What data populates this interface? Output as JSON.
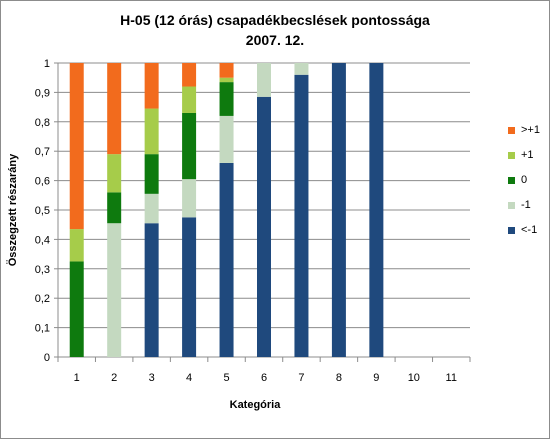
{
  "chart_data": {
    "type": "bar",
    "stacked": true,
    "title": "H-05 (12 órás) csapadékbecslések pontossága",
    "subtitle": "2007. 12.",
    "xlabel": "Kategória",
    "ylabel": "Összegzett részarány",
    "ylim": [
      0,
      1
    ],
    "yticks": [
      "0",
      "0,1",
      "0,2",
      "0,3",
      "0,4",
      "0,5",
      "0,6",
      "0,7",
      "0,8",
      "0,9",
      "1"
    ],
    "categories": [
      "1",
      "2",
      "3",
      "4",
      "5",
      "6",
      "7",
      "8",
      "9",
      "10",
      "11"
    ],
    "grid": true,
    "legend_position": "right",
    "series": [
      {
        "name": "<-1",
        "color": "#1f497d",
        "values": [
          0,
          0,
          0.455,
          0.475,
          0.66,
          0.885,
          0.96,
          1.0,
          1.0,
          0,
          0
        ]
      },
      {
        "name": "-1",
        "color": "#c4d9c0",
        "values": [
          0,
          0.455,
          0.1,
          0.13,
          0.16,
          0.115,
          0.04,
          0,
          0,
          0,
          0
        ]
      },
      {
        "name": "0",
        "color": "#0e7a0e",
        "values": [
          0.325,
          0.105,
          0.135,
          0.225,
          0.115,
          0,
          0,
          0,
          0,
          0,
          0
        ]
      },
      {
        "name": "+1",
        "color": "#a6cc4a",
        "values": [
          0.11,
          0.13,
          0.155,
          0.09,
          0.015,
          0,
          0,
          0,
          0,
          0,
          0
        ]
      },
      {
        "name": ">+1",
        "color": "#f26b1d",
        "values": [
          0.565,
          0.31,
          0.155,
          0.08,
          0.05,
          0,
          0,
          0,
          0,
          0,
          0
        ]
      }
    ],
    "legend_order": [
      ">+1",
      "+1",
      "0",
      "-1",
      "<-1"
    ]
  }
}
